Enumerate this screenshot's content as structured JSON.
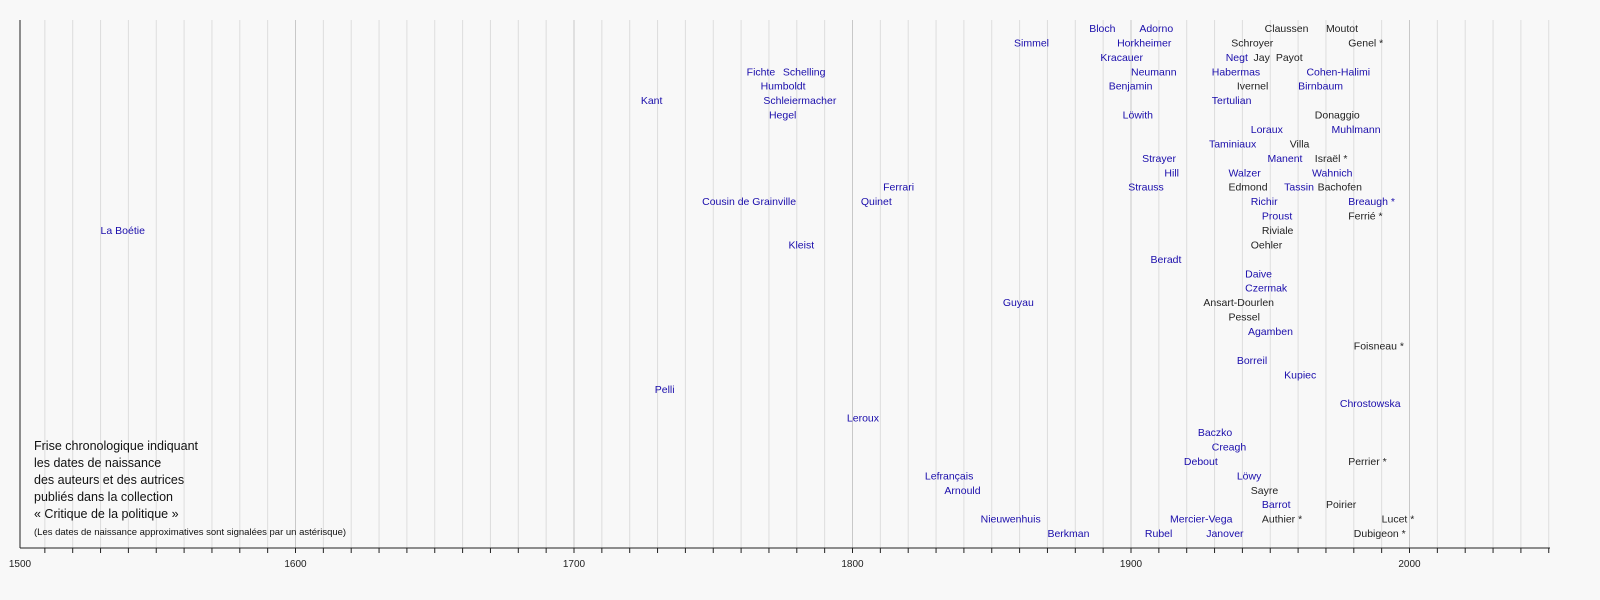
{
  "chart_data": {
    "type": "scatter",
    "title_lines": [
      "Frise chronologique indiquant",
      "les dates de naissance",
      "des auteurs et des autrices",
      "publiés dans la collection",
      "« Critique de la politique »"
    ],
    "note": "(Les dates de naissance approximatives sont signalées par un astérisque)",
    "xlim": [
      1500,
      2055
    ],
    "x_ticks": [
      1500,
      1600,
      1700,
      1800,
      1900,
      2000
    ],
    "grid": true,
    "colors": {
      "linked": "#1a0dab",
      "plain": "#222222",
      "grid": "#dddddd",
      "grid_major": "#c8c8c8"
    },
    "points": [
      {
        "name": "Bloch",
        "year": 1885,
        "row": 0,
        "linked": true
      },
      {
        "name": "Adorno",
        "year": 1903,
        "row": 0,
        "linked": true
      },
      {
        "name": "Claussen",
        "year": 1948,
        "row": 0,
        "linked": false
      },
      {
        "name": "Moutot",
        "year": 1970,
        "row": 0,
        "linked": false
      },
      {
        "name": "Simmel",
        "year": 1858,
        "row": 1,
        "linked": true
      },
      {
        "name": "Horkheimer",
        "year": 1895,
        "row": 1,
        "linked": true
      },
      {
        "name": "Schroyer",
        "year": 1936,
        "row": 1,
        "linked": false
      },
      {
        "name": "Genel *",
        "year": 1978,
        "row": 1,
        "linked": false
      },
      {
        "name": "Kracauer",
        "year": 1889,
        "row": 2,
        "linked": true
      },
      {
        "name": "Negt",
        "year": 1934,
        "row": 2,
        "linked": true
      },
      {
        "name": "Jay",
        "year": 1944,
        "row": 2,
        "linked": false
      },
      {
        "name": "Payot",
        "year": 1952,
        "row": 2,
        "linked": false
      },
      {
        "name": "Fichte",
        "year": 1762,
        "row": 3,
        "linked": true
      },
      {
        "name": "Schelling",
        "year": 1775,
        "row": 3,
        "linked": true
      },
      {
        "name": "Neumann",
        "year": 1900,
        "row": 3,
        "linked": true
      },
      {
        "name": "Habermas",
        "year": 1929,
        "row": 3,
        "linked": true
      },
      {
        "name": "Cohen-Halimi",
        "year": 1963,
        "row": 3,
        "linked": true
      },
      {
        "name": "Humboldt",
        "year": 1767,
        "row": 4,
        "linked": true
      },
      {
        "name": "Benjamin",
        "year": 1892,
        "row": 4,
        "linked": true
      },
      {
        "name": "Ivernel",
        "year": 1938,
        "row": 4,
        "linked": false
      },
      {
        "name": "Birnbaum",
        "year": 1960,
        "row": 4,
        "linked": true
      },
      {
        "name": "Kant",
        "year": 1724,
        "row": 5,
        "linked": true
      },
      {
        "name": "Schleiermacher",
        "year": 1768,
        "row": 5,
        "linked": true
      },
      {
        "name": "Tertulian",
        "year": 1929,
        "row": 5,
        "linked": true
      },
      {
        "name": "Hegel",
        "year": 1770,
        "row": 6,
        "linked": true
      },
      {
        "name": "Löwith",
        "year": 1897,
        "row": 6,
        "linked": true
      },
      {
        "name": "Donaggio",
        "year": 1966,
        "row": 6,
        "linked": false
      },
      {
        "name": "Loraux",
        "year": 1943,
        "row": 7,
        "linked": true
      },
      {
        "name": "Muhlmann",
        "year": 1972,
        "row": 7,
        "linked": true
      },
      {
        "name": "Taminiaux",
        "year": 1928,
        "row": 8,
        "linked": true
      },
      {
        "name": "Villa",
        "year": 1957,
        "row": 8,
        "linked": false
      },
      {
        "name": "Strayer",
        "year": 1904,
        "row": 9,
        "linked": true
      },
      {
        "name": "Manent",
        "year": 1949,
        "row": 9,
        "linked": true
      },
      {
        "name": "Israël *",
        "year": 1966,
        "row": 9,
        "linked": false
      },
      {
        "name": "Hill",
        "year": 1912,
        "row": 10,
        "linked": true
      },
      {
        "name": "Walzer",
        "year": 1935,
        "row": 10,
        "linked": true
      },
      {
        "name": "Wahnich",
        "year": 1965,
        "row": 10,
        "linked": true
      },
      {
        "name": "Ferrari",
        "year": 1811,
        "row": 11,
        "linked": true
      },
      {
        "name": "Strauss",
        "year": 1899,
        "row": 11,
        "linked": true
      },
      {
        "name": "Edmond",
        "year": 1935,
        "row": 11,
        "linked": false
      },
      {
        "name": "Tassin",
        "year": 1955,
        "row": 11,
        "linked": true
      },
      {
        "name": "Bachofen",
        "year": 1967,
        "row": 11,
        "linked": false
      },
      {
        "name": "Cousin de Grainville",
        "year": 1746,
        "row": 12,
        "linked": true
      },
      {
        "name": "Quinet",
        "year": 1803,
        "row": 12,
        "linked": true
      },
      {
        "name": "Richir",
        "year": 1943,
        "row": 12,
        "linked": true
      },
      {
        "name": "Breaugh *",
        "year": 1978,
        "row": 12,
        "linked": true
      },
      {
        "name": "Proust",
        "year": 1947,
        "row": 13,
        "linked": true
      },
      {
        "name": "Ferrié *",
        "year": 1978,
        "row": 13,
        "linked": false
      },
      {
        "name": "La Boétie",
        "year": 1530,
        "row": 14,
        "linked": true
      },
      {
        "name": "Riviale",
        "year": 1947,
        "row": 14,
        "linked": false
      },
      {
        "name": "Kleist",
        "year": 1777,
        "row": 15,
        "linked": true
      },
      {
        "name": "Oehler",
        "year": 1943,
        "row": 15,
        "linked": false
      },
      {
        "name": "Beradt",
        "year": 1907,
        "row": 16,
        "linked": true
      },
      {
        "name": "Daive",
        "year": 1941,
        "row": 17,
        "linked": true
      },
      {
        "name": "Czermak",
        "year": 1941,
        "row": 18,
        "linked": true
      },
      {
        "name": "Guyau",
        "year": 1854,
        "row": 19,
        "linked": true
      },
      {
        "name": "Ansart-Dourlen",
        "year": 1926,
        "row": 19,
        "linked": false
      },
      {
        "name": "Pessel",
        "year": 1935,
        "row": 20,
        "linked": false
      },
      {
        "name": "Agamben",
        "year": 1942,
        "row": 21,
        "linked": true
      },
      {
        "name": "Foisneau *",
        "year": 1980,
        "row": 22,
        "linked": false
      },
      {
        "name": "Borreil",
        "year": 1938,
        "row": 23,
        "linked": true
      },
      {
        "name": "Kupiec",
        "year": 1955,
        "row": 24,
        "linked": true
      },
      {
        "name": "Pelli",
        "year": 1729,
        "row": 25,
        "linked": true
      },
      {
        "name": "Chrostowska",
        "year": 1975,
        "row": 26,
        "linked": true
      },
      {
        "name": "Leroux",
        "year": 1798,
        "row": 27,
        "linked": true
      },
      {
        "name": "Baczko",
        "year": 1924,
        "row": 28,
        "linked": true
      },
      {
        "name": "Creagh",
        "year": 1929,
        "row": 29,
        "linked": true
      },
      {
        "name": "Debout",
        "year": 1919,
        "row": 30,
        "linked": true
      },
      {
        "name": "Perrier *",
        "year": 1978,
        "row": 30,
        "linked": false
      },
      {
        "name": "Lefrançais",
        "year": 1826,
        "row": 31,
        "linked": true
      },
      {
        "name": "Löwy",
        "year": 1938,
        "row": 31,
        "linked": true
      },
      {
        "name": "Arnould",
        "year": 1833,
        "row": 32,
        "linked": true
      },
      {
        "name": "Sayre",
        "year": 1943,
        "row": 32,
        "linked": false
      },
      {
        "name": "Barrot",
        "year": 1947,
        "row": 33,
        "linked": true
      },
      {
        "name": "Poirier",
        "year": 1970,
        "row": 33,
        "linked": false
      },
      {
        "name": "Nieuwenhuis",
        "year": 1846,
        "row": 34,
        "linked": true
      },
      {
        "name": "Mercier-Vega",
        "year": 1914,
        "row": 34,
        "linked": true
      },
      {
        "name": "Authier *",
        "year": 1947,
        "row": 34,
        "linked": false
      },
      {
        "name": "Lucet *",
        "year": 1990,
        "row": 34,
        "linked": false
      },
      {
        "name": "Berkman",
        "year": 1870,
        "row": 35,
        "linked": true
      },
      {
        "name": "Rubel",
        "year": 1905,
        "row": 35,
        "linked": true
      },
      {
        "name": "Janover",
        "year": 1927,
        "row": 35,
        "linked": true
      },
      {
        "name": "Dubigeon *",
        "year": 1980,
        "row": 35,
        "linked": false
      }
    ]
  }
}
